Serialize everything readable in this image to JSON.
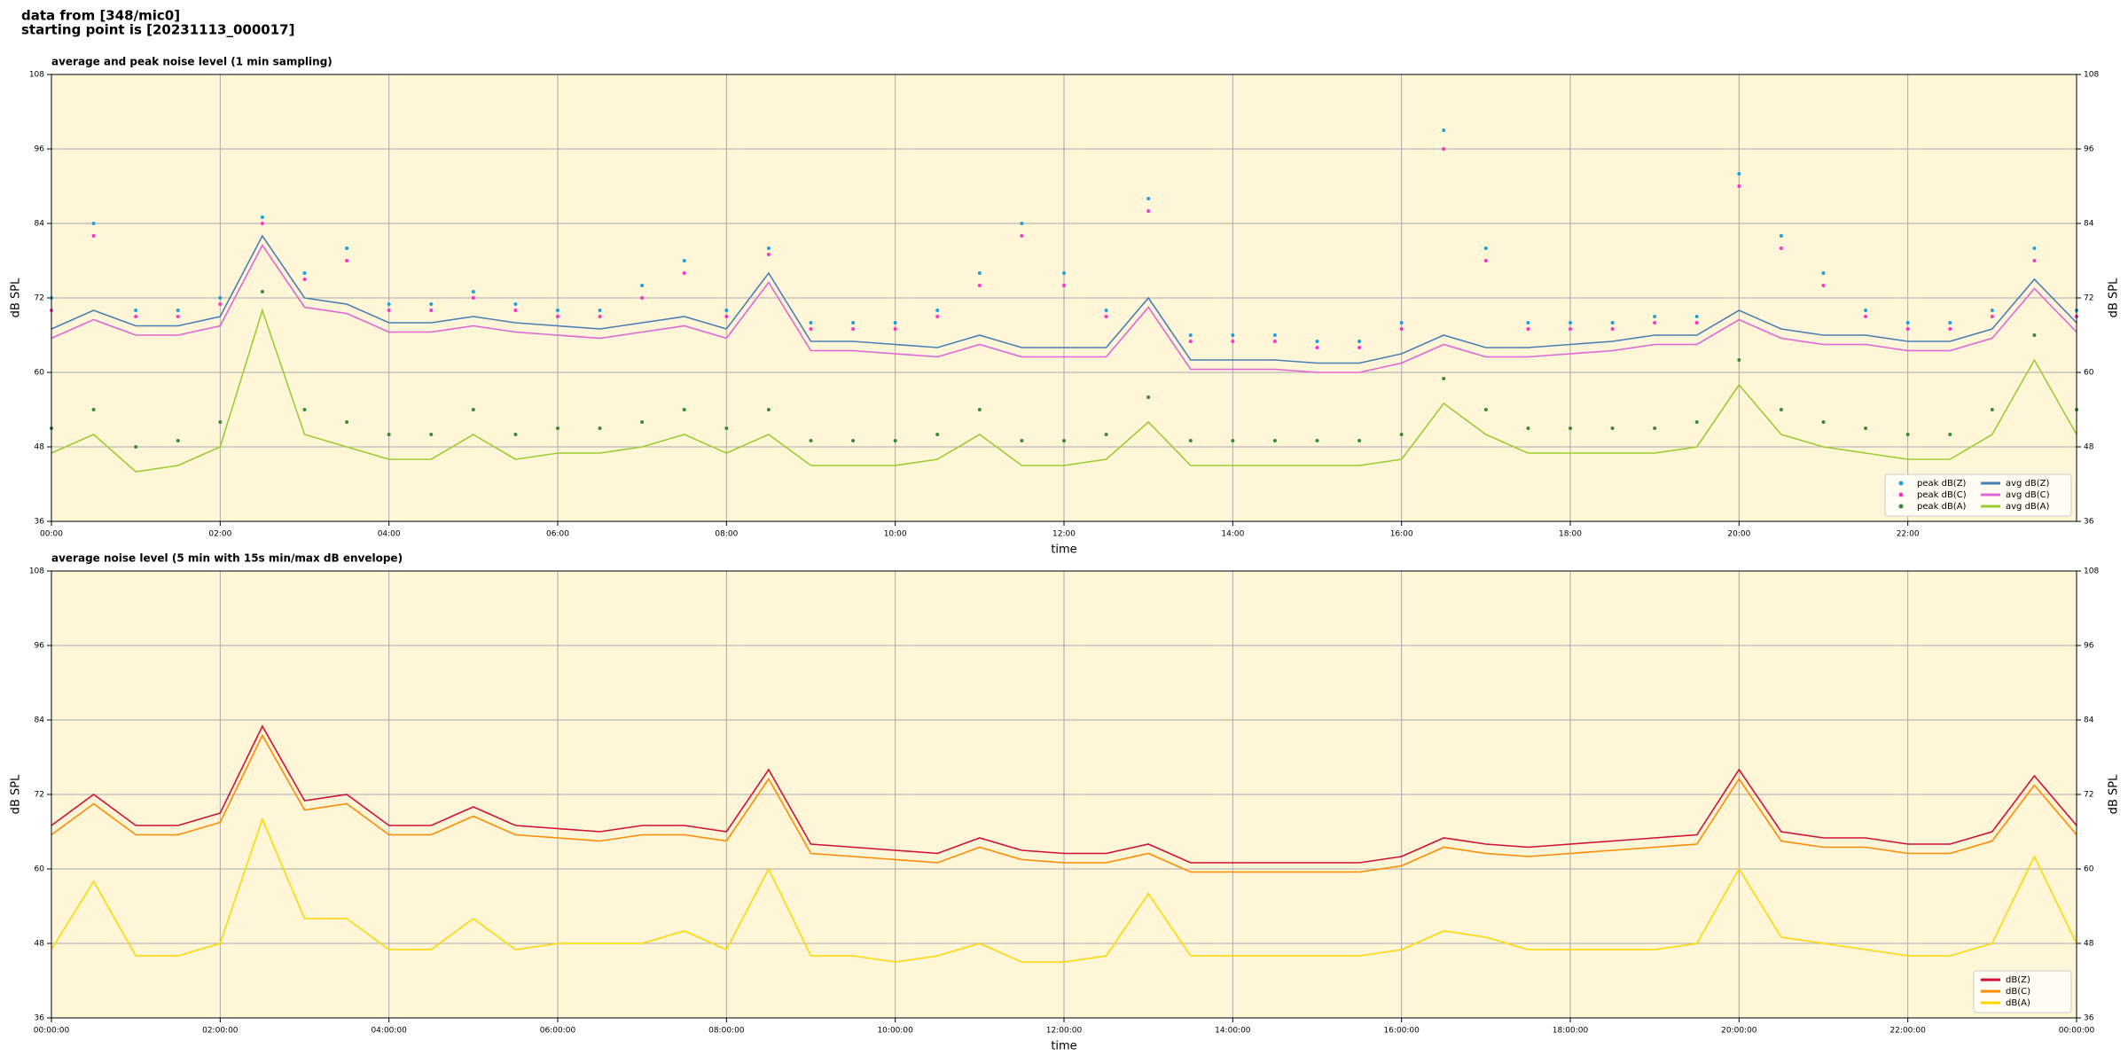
{
  "header": [
    "data from [348/mic0]",
    "starting point is [20231113_000017]"
  ],
  "chart_data": [
    {
      "type": "line",
      "title": "average and peak noise level (1 min sampling)",
      "x_label": "time",
      "y_label": "dB SPL",
      "xlim": [
        0,
        24
      ],
      "ylim": [
        36,
        108
      ],
      "yticks": [
        36,
        48,
        60,
        72,
        84,
        96,
        108
      ],
      "xticks": [
        {
          "value": 0,
          "label": "00:00"
        },
        {
          "value": 2,
          "label": "02:00"
        },
        {
          "value": 4,
          "label": "04:00"
        },
        {
          "value": 6,
          "label": "06:00"
        },
        {
          "value": 8,
          "label": "08:00"
        },
        {
          "value": 10,
          "label": "10:00"
        },
        {
          "value": 12,
          "label": "12:00"
        },
        {
          "value": 14,
          "label": "14:00"
        },
        {
          "value": 16,
          "label": "16:00"
        },
        {
          "value": 18,
          "label": "18:00"
        },
        {
          "value": 20,
          "label": "20:00"
        },
        {
          "value": 22,
          "label": "22:00"
        }
      ],
      "grid": true,
      "legend": "lower right",
      "legend_columns": 2,
      "x": [
        0,
        0.5,
        1,
        1.5,
        2,
        2.5,
        3,
        3.5,
        4,
        4.5,
        5,
        5.5,
        6,
        6.5,
        7,
        7.5,
        8,
        8.5,
        9,
        9.5,
        10,
        10.5,
        11,
        11.5,
        12,
        12.5,
        13,
        13.5,
        14,
        14.5,
        15,
        15.5,
        16,
        16.5,
        17,
        17.5,
        18,
        18.5,
        19,
        19.5,
        20,
        20.5,
        21,
        21.5,
        22,
        22.5,
        23,
        23.5,
        24
      ],
      "series": [
        {
          "name": "peak dB(Z)",
          "color": "#1f9fe0",
          "style": "scatter",
          "values": [
            72,
            84,
            70,
            70,
            72,
            85,
            76,
            80,
            71,
            71,
            73,
            71,
            70,
            70,
            74,
            78,
            70,
            80,
            68,
            68,
            68,
            70,
            76,
            84,
            76,
            70,
            88,
            66,
            66,
            66,
            65,
            65,
            68,
            99,
            80,
            68,
            68,
            68,
            69,
            69,
            92,
            82,
            76,
            70,
            68,
            68,
            70,
            80,
            70
          ]
        },
        {
          "name": "peak dB(C)",
          "color": "#ff33cc",
          "style": "scatter",
          "values": [
            70,
            82,
            69,
            69,
            71,
            84,
            75,
            78,
            70,
            70,
            72,
            70,
            69,
            69,
            72,
            76,
            69,
            79,
            67,
            67,
            67,
            69,
            74,
            82,
            74,
            69,
            86,
            65,
            65,
            65,
            64,
            64,
            67,
            96,
            78,
            67,
            67,
            67,
            68,
            68,
            90,
            80,
            74,
            69,
            67,
            67,
            69,
            78,
            69
          ]
        },
        {
          "name": "peak dB(A)",
          "color": "#3a8a3a",
          "style": "scatter",
          "values": [
            51,
            54,
            48,
            49,
            52,
            73,
            54,
            52,
            50,
            50,
            54,
            50,
            51,
            51,
            52,
            54,
            51,
            54,
            49,
            49,
            49,
            50,
            54,
            49,
            49,
            50,
            56,
            49,
            49,
            49,
            49,
            49,
            50,
            59,
            54,
            51,
            51,
            51,
            51,
            52,
            62,
            54,
            52,
            51,
            50,
            50,
            54,
            66,
            54
          ]
        },
        {
          "name": "avg dB(Z)",
          "color": "#4a7fb5",
          "style": "line",
          "values": [
            67,
            70,
            67.5,
            67.5,
            69,
            82,
            72,
            71,
            68,
            68,
            69,
            68,
            67.5,
            67,
            68,
            69,
            67,
            76,
            65,
            65,
            64.5,
            64,
            66,
            64,
            64,
            64,
            72,
            62,
            62,
            62,
            61.5,
            61.5,
            63,
            66,
            64,
            64,
            64.5,
            65,
            66,
            66,
            70,
            67,
            66,
            66,
            65,
            65,
            67,
            75,
            68
          ]
        },
        {
          "name": "avg dB(C)",
          "color": "#e066d6",
          "style": "line",
          "values": [
            65.5,
            68.5,
            66,
            66,
            67.5,
            80.5,
            70.5,
            69.5,
            66.5,
            66.5,
            67.5,
            66.5,
            66,
            65.5,
            66.5,
            67.5,
            65.5,
            74.5,
            63.5,
            63.5,
            63,
            62.5,
            64.5,
            62.5,
            62.5,
            62.5,
            70.5,
            60.5,
            60.5,
            60.5,
            60,
            60,
            61.5,
            64.5,
            62.5,
            62.5,
            63,
            63.5,
            64.5,
            64.5,
            68.5,
            65.5,
            64.5,
            64.5,
            63.5,
            63.5,
            65.5,
            73.5,
            66.5
          ]
        },
        {
          "name": "avg dB(A)",
          "color": "#9acd32",
          "style": "line",
          "values": [
            47,
            50,
            44,
            45,
            48,
            70,
            50,
            48,
            46,
            46,
            50,
            46,
            47,
            47,
            48,
            50,
            47,
            50,
            45,
            45,
            45,
            46,
            50,
            45,
            45,
            46,
            52,
            45,
            45,
            45,
            45,
            45,
            46,
            55,
            50,
            47,
            47,
            47,
            47,
            48,
            58,
            50,
            48,
            47,
            46,
            46,
            50,
            62,
            50
          ]
        }
      ]
    },
    {
      "type": "line",
      "title": "average noise level (5 min with 15s min/max dB envelope)",
      "x_label": "time",
      "y_label": "dB SPL",
      "xlim": [
        0,
        24
      ],
      "ylim": [
        36,
        108
      ],
      "yticks": [
        36,
        48,
        60,
        72,
        84,
        96,
        108
      ],
      "xticks": [
        {
          "value": 0,
          "label": "00:00:00"
        },
        {
          "value": 2,
          "label": "02:00:00"
        },
        {
          "value": 4,
          "label": "04:00:00"
        },
        {
          "value": 6,
          "label": "06:00:00"
        },
        {
          "value": 8,
          "label": "08:00:00"
        },
        {
          "value": 10,
          "label": "10:00:00"
        },
        {
          "value": 12,
          "label": "12:00:00"
        },
        {
          "value": 14,
          "label": "14:00:00"
        },
        {
          "value": 16,
          "label": "16:00:00"
        },
        {
          "value": 18,
          "label": "18:00:00"
        },
        {
          "value": 20,
          "label": "20:00:00"
        },
        {
          "value": 22,
          "label": "22:00:00"
        },
        {
          "value": 24,
          "label": "00:00:00"
        }
      ],
      "grid": true,
      "legend": "lower right",
      "legend_columns": 1,
      "x": [
        0,
        0.5,
        1,
        1.5,
        2,
        2.5,
        3,
        3.5,
        4,
        4.5,
        5,
        5.5,
        6,
        6.5,
        7,
        7.5,
        8,
        8.5,
        9,
        9.5,
        10,
        10.5,
        11,
        11.5,
        12,
        12.5,
        13,
        13.5,
        14,
        14.5,
        15,
        15.5,
        16,
        16.5,
        17,
        17.5,
        18,
        18.5,
        19,
        19.5,
        20,
        20.5,
        21,
        21.5,
        22,
        22.5,
        23,
        23.5,
        24
      ],
      "series": [
        {
          "name": "dB(Z)",
          "color": "#d0103a",
          "style": "line",
          "values": [
            67,
            72,
            67,
            67,
            69,
            83,
            71,
            72,
            67,
            67,
            70,
            67,
            66.5,
            66,
            67,
            67,
            66,
            76,
            64,
            63.5,
            63,
            62.5,
            65,
            63,
            62.5,
            62.5,
            64,
            61,
            61,
            61,
            61,
            61,
            62,
            65,
            64,
            63.5,
            64,
            64.5,
            65,
            65.5,
            76,
            66,
            65,
            65,
            64,
            64,
            66,
            75,
            67
          ]
        },
        {
          "name": "dB(C)",
          "color": "#ff8c00",
          "style": "line",
          "values": [
            65.5,
            70.5,
            65.5,
            65.5,
            67.5,
            81.5,
            69.5,
            70.5,
            65.5,
            65.5,
            68.5,
            65.5,
            65,
            64.5,
            65.5,
            65.5,
            64.5,
            74.5,
            62.5,
            62,
            61.5,
            61,
            63.5,
            61.5,
            61,
            61,
            62.5,
            59.5,
            59.5,
            59.5,
            59.5,
            59.5,
            60.5,
            63.5,
            62.5,
            62,
            62.5,
            63,
            63.5,
            64,
            74.5,
            64.5,
            63.5,
            63.5,
            62.5,
            62.5,
            64.5,
            73.5,
            65.5
          ]
        },
        {
          "name": "dB(A)",
          "color": "#ffd700",
          "style": "line",
          "values": [
            47,
            58,
            46,
            46,
            48,
            68,
            52,
            52,
            47,
            47,
            52,
            47,
            48,
            48,
            48,
            50,
            47,
            60,
            46,
            46,
            45,
            46,
            48,
            45,
            45,
            46,
            56,
            46,
            46,
            46,
            46,
            46,
            47,
            50,
            49,
            47,
            47,
            47,
            47,
            48,
            60,
            49,
            48,
            47,
            46,
            46,
            48,
            62,
            48
          ]
        }
      ]
    }
  ]
}
